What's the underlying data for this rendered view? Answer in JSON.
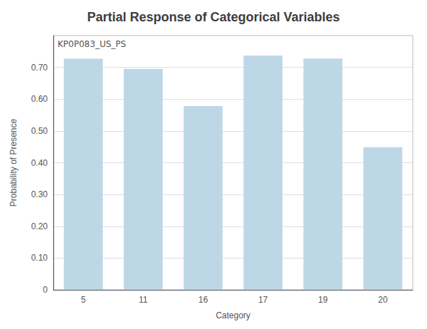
{
  "chart_data": {
    "type": "bar",
    "title": "Partial Response of Categorical Variables",
    "xlabel": "Category",
    "ylabel": "Probability of Presence",
    "annotation": "KP0P083_US_PS",
    "categories": [
      "5",
      "11",
      "16",
      "17",
      "19",
      "20"
    ],
    "values": [
      0.727,
      0.695,
      0.578,
      0.737,
      0.728,
      0.449
    ],
    "color": "#bdd7e7",
    "ylim": [
      0,
      0.8
    ],
    "yticks": [
      0,
      {
        "value": 0.1,
        "label": "0.10"
      },
      {
        "value": 0.2,
        "label": "0.20"
      },
      {
        "value": 0.3,
        "label": "0.30"
      },
      {
        "value": 0.4,
        "label": "0.40"
      },
      {
        "value": 0.5,
        "label": "0.50"
      },
      {
        "value": 0.6,
        "label": "0.60"
      },
      {
        "value": 0.7,
        "label": "0.70"
      }
    ],
    "grid": true
  }
}
